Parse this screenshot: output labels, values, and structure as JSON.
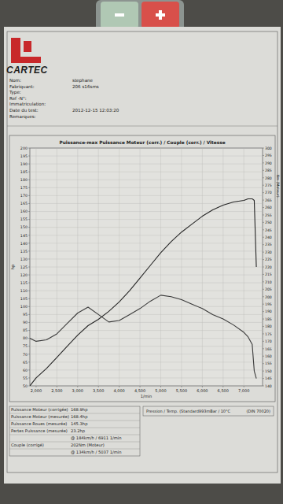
{
  "chart_data": {
    "type": "line",
    "title": "Puissance-max Puissance Moteur (corr.) / Couple (corr.) / Vitesse",
    "x_label": "1/min",
    "y_label": "hp",
    "y2_label": "Nm (Moteur)",
    "x": [
      1850,
      2000,
      2250,
      2500,
      2750,
      3000,
      3250,
      3500,
      3750,
      4000,
      4250,
      4500,
      4750,
      5000,
      5250,
      5500,
      5750,
      6000,
      6250,
      6500,
      6750,
      7000,
      7100,
      7200,
      7250,
      7300
    ],
    "series": [
      {
        "name": "Puissance Moteur (corr.)",
        "color": "#262626",
        "values": [
          50,
          55,
          61,
          68,
          75,
          82,
          88,
          92,
          97,
          103,
          110,
          118,
          126,
          134,
          141,
          147,
          152,
          157,
          161,
          164,
          166,
          167,
          168,
          168,
          167,
          125
        ]
      },
      {
        "name": "Couple (corr.)",
        "color": "#3a3a3a",
        "axis": "y2",
        "values": [
          172,
          170,
          171,
          175,
          182,
          189,
          193,
          188,
          183,
          184,
          188,
          192,
          197,
          201,
          200,
          198,
          195,
          192,
          188,
          185,
          181,
          176,
          173,
          168,
          150,
          145
        ]
      }
    ],
    "xlim": [
      1850,
      7450
    ],
    "xticks": [
      {
        "value": 2000,
        "label": "2,000"
      },
      {
        "value": 2500,
        "label": "2,500"
      },
      {
        "value": 3000,
        "label": "3,000"
      },
      {
        "value": 3500,
        "label": "3,500"
      },
      {
        "value": 4000,
        "label": "4,000"
      },
      {
        "value": 4500,
        "label": "4,500"
      },
      {
        "value": 5000,
        "label": "5,000"
      },
      {
        "value": 5500,
        "label": "5,500"
      },
      {
        "value": 6000,
        "label": "6,000"
      },
      {
        "value": 6500,
        "label": "6,500"
      },
      {
        "value": 7000,
        "label": "7,000"
      }
    ],
    "ylim": [
      50,
      200
    ],
    "yticks": [
      50,
      55,
      60,
      65,
      70,
      75,
      80,
      85,
      90,
      95,
      100,
      105,
      110,
      115,
      120,
      125,
      130,
      135,
      140,
      145,
      150,
      155,
      160,
      165,
      170,
      175,
      180,
      185,
      190,
      195,
      200
    ],
    "y2lim": [
      140,
      300
    ],
    "y2ticks": [
      140,
      145,
      150,
      155,
      160,
      165,
      170,
      175,
      180,
      185,
      190,
      195,
      200,
      205,
      210,
      215,
      220,
      225,
      230,
      235,
      240,
      245,
      250,
      255,
      260,
      265,
      270,
      275,
      280,
      285,
      290,
      295,
      300
    ],
    "grid": true
  },
  "header": {
    "logo": "CARTEC",
    "fields": [
      {
        "label": "Nom:",
        "value": "stephane"
      },
      {
        "label": "Fabriquant:",
        "value": "206 s16sms"
      },
      {
        "label": "Type:"
      },
      {
        "label": "Ref -N°:"
      },
      {
        "label": "Immatriculation:"
      },
      {
        "label": "Date du test:",
        "value": "2012-12-15 12:03:20"
      },
      {
        "label": "Remarques:"
      }
    ]
  },
  "results": {
    "rows": [
      {
        "label": "Puissance Moteur (corrigée)",
        "value": "168.9hp"
      },
      {
        "label": "Puissance Moteur (mesurée)",
        "value": "168.4hp"
      },
      {
        "label": "Puissance Roues (mesurée)",
        "value": "145.3hp"
      },
      {
        "label": "Pertes Puissance (mesurée)",
        "value": "23.2hp"
      },
      {
        "value": "@ 184km/h / 6911 1/min"
      },
      {
        "label": "Couple (corrigé)",
        "value": "202Nm (Moteur)"
      },
      {
        "value": "@ 134km/h / 5037 1/min"
      }
    ],
    "conditions": "Pression / Temp. (Standard993mBar / 10°C",
    "standard": "(DIN 70020)"
  }
}
